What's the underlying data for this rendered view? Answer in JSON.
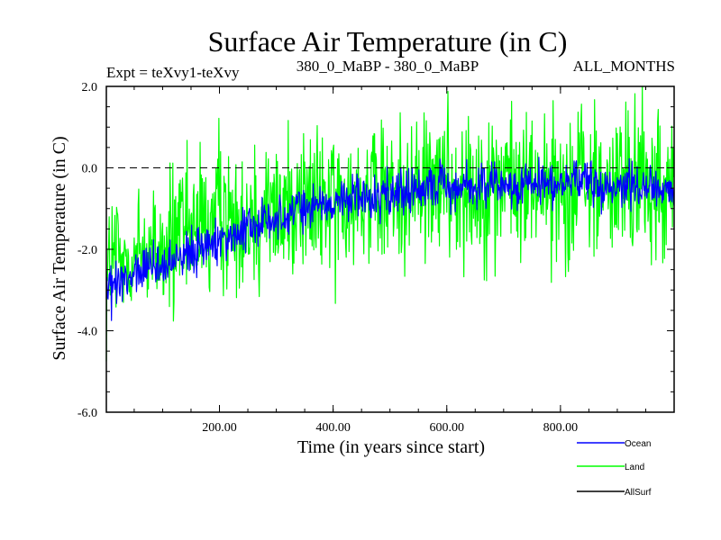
{
  "chart_data": {
    "type": "line",
    "title": "Surface Air Temperature (in C)",
    "experiment": "Expt = teXvy1-teXvy",
    "subtitle": "380_0_MaBP - 380_0_MaBP",
    "period": "ALL_MONTHS",
    "xlabel": "Time (in years since start)",
    "ylabel": "Surface Air Temperature (in C)",
    "xlim": [
      1,
      1000
    ],
    "ylim": [
      -6.0,
      2.0
    ],
    "xticks": [
      200,
      400,
      600,
      800
    ],
    "xtick_labels": [
      "200.00",
      "400.00",
      "600.00",
      "800.00"
    ],
    "yticks": [
      -6,
      -4,
      -2,
      0,
      2
    ],
    "ytick_labels": [
      "-6.0",
      "-4.0",
      "-2.0",
      "0.0",
      "2.0"
    ],
    "reference_line": {
      "y": 0.0,
      "style": "dashed"
    },
    "series": [
      {
        "name": "Ocean",
        "color": "#0000ff",
        "trend": {
          "x": [
            1,
            50,
            100,
            150,
            200,
            250,
            300,
            350,
            400,
            500,
            600,
            700,
            800,
            900,
            1000
          ],
          "y": [
            -3.0,
            -2.7,
            -2.4,
            -2.1,
            -1.8,
            -1.5,
            -1.25,
            -1.0,
            -0.85,
            -0.6,
            -0.45,
            -0.4,
            -0.4,
            -0.4,
            -0.55
          ]
        },
        "noise_amplitude": 0.6
      },
      {
        "name": "Land",
        "color": "#00ff00",
        "trend": {
          "x": [
            1,
            50,
            100,
            150,
            200,
            250,
            300,
            350,
            400,
            500,
            600,
            700,
            800,
            900,
            1000
          ],
          "y": [
            -2.6,
            -2.2,
            -1.9,
            -1.6,
            -1.35,
            -1.2,
            -1.0,
            -0.85,
            -0.75,
            -0.6,
            -0.45,
            -0.4,
            -0.4,
            -0.45,
            -0.55
          ]
        },
        "noise_amplitude": 2.0
      },
      {
        "name": "AllSurf",
        "color": "#000000",
        "trend": {
          "x": [],
          "y": []
        },
        "noise_amplitude": 0
      }
    ],
    "legend": {
      "position": "bottom-right"
    }
  }
}
